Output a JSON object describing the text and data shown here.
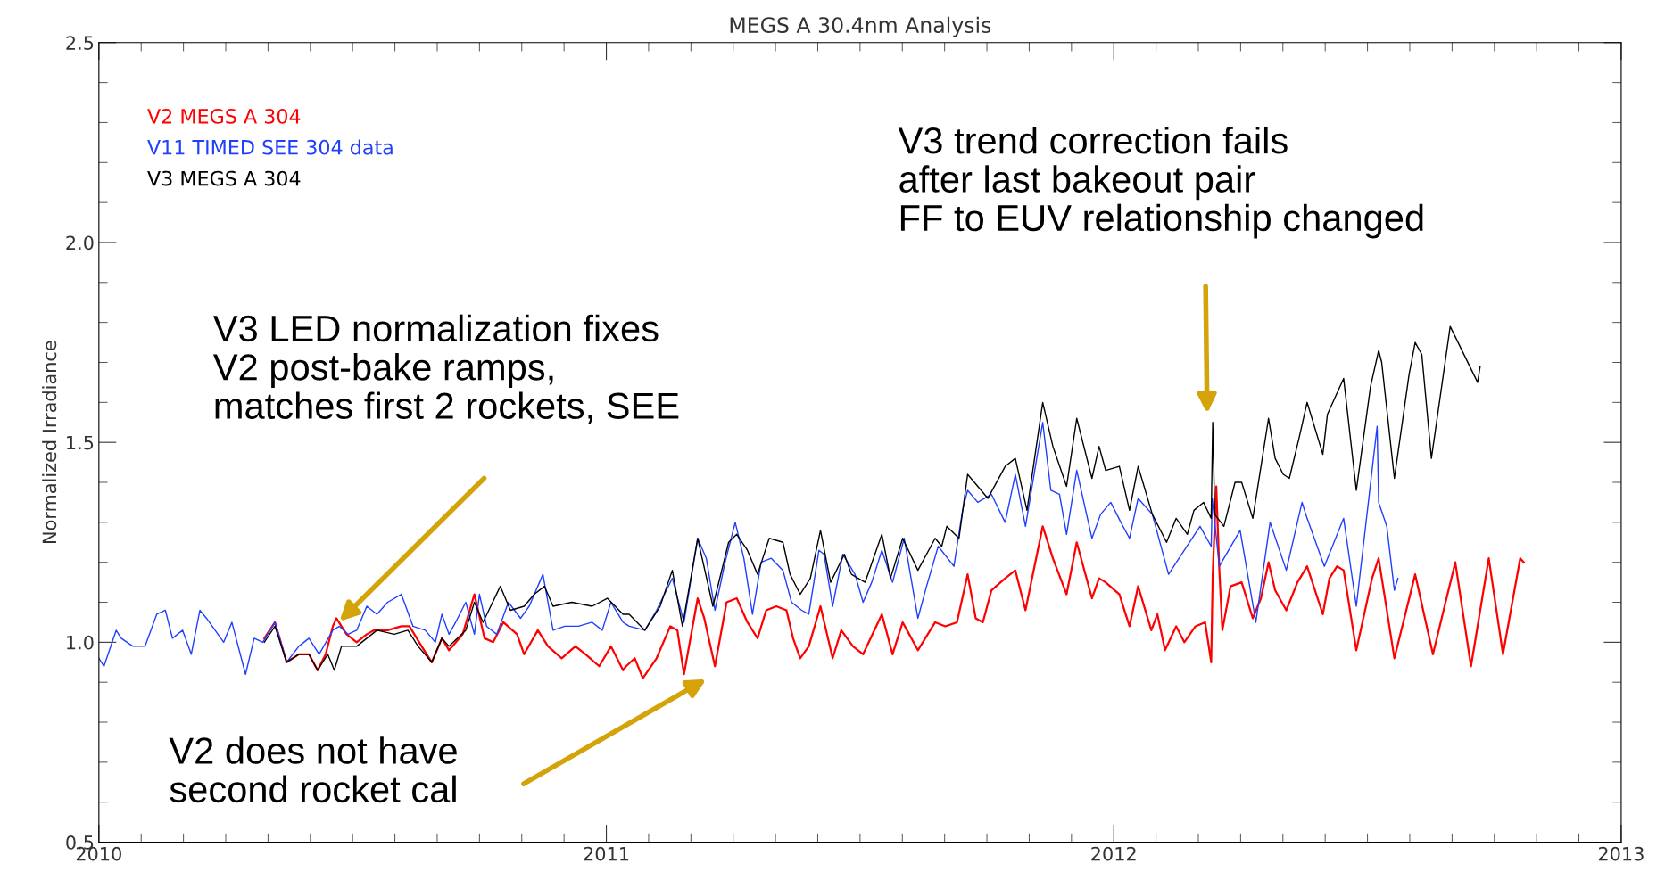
{
  "chart_data": {
    "type": "line",
    "title": "MEGS A 30.4nm Analysis",
    "ylabel": "Normalized Irradiance",
    "xlim": [
      2010,
      2013
    ],
    "xticks": [
      2010,
      2011,
      2012,
      2013
    ],
    "ylim": [
      0.5,
      2.5
    ],
    "yticks": [
      0.5,
      {
        "value": 1.0,
        "label": "1.0"
      },
      1.5,
      {
        "value": 2.0,
        "label": "2.0"
      },
      2.5
    ],
    "grid": false,
    "legend": "top left",
    "marker": "none",
    "line_style": "solid",
    "series": [
      {
        "name": "V2 MEGS A 304",
        "color": "#ff0000",
        "x": [
          2010.326,
          2010.347,
          2010.37,
          2010.394,
          2010.414,
          2010.431,
          2010.447,
          2010.461,
          2010.468,
          2010.488,
          2010.508,
          2010.528,
          2010.542,
          2010.569,
          2010.596,
          2010.612,
          2010.636,
          2010.656,
          2010.676,
          2010.69,
          2010.717,
          2010.74,
          2010.76,
          2010.777,
          2010.797,
          2010.824,
          2010.838,
          2010.865,
          2010.885,
          2010.912,
          2010.939,
          2010.959,
          2010.986,
          2011.009,
          2011.033,
          2011.039,
          2011.056,
          2011.072,
          2011.099,
          2011.126,
          2011.14,
          2011.153,
          2011.18,
          2011.193,
          2011.214,
          2011.237,
          2011.257,
          2011.278,
          2011.298,
          2011.315,
          2011.335,
          2011.355,
          2011.368,
          2011.382,
          2011.399,
          2011.422,
          2011.446,
          2011.463,
          2011.486,
          2011.506,
          2011.543,
          2011.564,
          2011.584,
          2011.614,
          2011.648,
          2011.668,
          2011.691,
          2011.712,
          2011.728,
          2011.742,
          2011.759,
          2011.786,
          2011.806,
          2011.826,
          2011.86,
          2011.88,
          2011.907,
          2011.927,
          2011.957,
          2011.971,
          2011.984,
          2012.011,
          2012.031,
          2012.048,
          2012.074,
          2012.086,
          2012.101,
          2012.123,
          2012.139,
          2012.161,
          2012.18,
          2012.192,
          2012.195,
          2012.202,
          2012.208,
          2012.214,
          2012.23,
          2012.252,
          2012.274,
          2012.29,
          2012.305,
          2012.318,
          2012.34,
          2012.362,
          2012.381,
          2012.412,
          2012.425,
          2012.44,
          2012.453,
          2012.478,
          2012.509,
          2012.522,
          2012.553,
          2012.594,
          2012.629,
          2012.673,
          2012.704,
          2012.739,
          2012.767,
          2012.801,
          2012.808
        ],
        "values": [
          1.01,
          1.05,
          0.95,
          0.97,
          0.97,
          0.93,
          0.97,
          1.04,
          1.06,
          1.02,
          1.0,
          1.02,
          1.03,
          1.03,
          1.04,
          1.04,
          0.99,
          0.95,
          1.01,
          0.98,
          1.02,
          1.12,
          1.01,
          1.0,
          1.05,
          1.02,
          0.97,
          1.03,
          0.99,
          0.96,
          0.99,
          0.97,
          0.94,
          0.99,
          0.93,
          0.94,
          0.96,
          0.91,
          0.96,
          1.04,
          1.03,
          0.92,
          1.11,
          1.06,
          0.94,
          1.1,
          1.11,
          1.05,
          1.01,
          1.08,
          1.09,
          1.08,
          1.01,
          0.96,
          0.99,
          1.09,
          0.96,
          1.03,
          0.99,
          0.97,
          1.07,
          0.97,
          1.05,
          0.98,
          1.05,
          1.04,
          1.05,
          1.17,
          1.06,
          1.05,
          1.13,
          1.16,
          1.18,
          1.08,
          1.29,
          1.21,
          1.12,
          1.25,
          1.11,
          1.16,
          1.15,
          1.12,
          1.04,
          1.14,
          1.03,
          1.07,
          0.98,
          1.04,
          1.0,
          1.04,
          1.05,
          0.95,
          1.17,
          1.39,
          1.18,
          1.03,
          1.14,
          1.15,
          1.06,
          1.11,
          1.2,
          1.13,
          1.08,
          1.15,
          1.19,
          1.07,
          1.16,
          1.19,
          1.18,
          0.98,
          1.16,
          1.21,
          0.96,
          1.17,
          0.97,
          1.2,
          0.94,
          1.21,
          0.97,
          1.21,
          1.2
        ]
      },
      {
        "name": "V11 TIMED SEE 304 data",
        "color": "#1f3fff",
        "x": [
          2010.0,
          2010.01,
          2010.034,
          2010.044,
          2010.067,
          2010.091,
          2010.114,
          2010.131,
          2010.145,
          2010.165,
          2010.182,
          2010.199,
          2010.212,
          2010.229,
          2010.246,
          2010.262,
          2010.289,
          2010.306,
          2010.323,
          2010.347,
          2010.37,
          2010.394,
          2010.414,
          2010.434,
          2010.461,
          2010.474,
          2010.491,
          2010.508,
          2010.528,
          2010.548,
          2010.569,
          2010.596,
          2010.619,
          2010.643,
          2010.663,
          2010.676,
          2010.69,
          2010.703,
          2010.723,
          2010.74,
          2010.75,
          2010.764,
          2010.784,
          2010.807,
          2010.831,
          2010.848,
          2010.875,
          2010.895,
          2010.918,
          2010.945,
          2010.972,
          2010.992,
          2011.009,
          2011.033,
          2011.045,
          2011.076,
          2011.099,
          2011.13,
          2011.153,
          2011.18,
          2011.197,
          2011.214,
          2011.234,
          2011.254,
          2011.271,
          2011.288,
          2011.305,
          2011.325,
          2011.348,
          2011.365,
          2011.385,
          2011.399,
          2011.419,
          2011.429,
          2011.446,
          2011.466,
          2011.49,
          2011.506,
          2011.523,
          2011.543,
          2011.564,
          2011.587,
          2011.614,
          2011.631,
          2011.654,
          2011.685,
          2011.702,
          2011.712,
          2011.732,
          2011.759,
          2011.786,
          2011.806,
          2011.826,
          2011.86,
          2011.876,
          2011.893,
          2011.907,
          2011.927,
          2011.957,
          2011.974,
          2011.994,
          2012.014,
          2012.031,
          2012.048,
          2012.076,
          2012.108,
          2012.139,
          2012.17,
          2012.192,
          2012.194,
          2012.208,
          2012.249,
          2012.28,
          2012.308,
          2012.34,
          2012.371,
          2012.381,
          2012.415,
          2012.453,
          2012.478,
          2012.519,
          2012.522,
          2012.538,
          2012.553,
          2012.56
        ],
        "values": [
          0.96,
          0.94,
          1.03,
          1.01,
          0.99,
          0.99,
          1.07,
          1.08,
          1.01,
          1.03,
          0.97,
          1.08,
          1.06,
          1.03,
          1.0,
          1.05,
          0.92,
          1.01,
          1.0,
          1.05,
          0.95,
          0.99,
          1.01,
          0.97,
          1.03,
          1.04,
          1.02,
          1.03,
          1.09,
          1.07,
          1.1,
          1.12,
          1.04,
          1.03,
          1.0,
          1.07,
          1.02,
          1.05,
          1.1,
          1.02,
          1.12,
          1.04,
          1.02,
          1.1,
          1.06,
          1.09,
          1.17,
          1.03,
          1.04,
          1.04,
          1.05,
          1.03,
          1.1,
          1.05,
          1.04,
          1.03,
          1.08,
          1.16,
          1.05,
          1.26,
          1.21,
          1.08,
          1.2,
          1.3,
          1.21,
          1.07,
          1.2,
          1.21,
          1.18,
          1.1,
          1.08,
          1.07,
          1.23,
          1.22,
          1.09,
          1.22,
          1.17,
          1.1,
          1.15,
          1.23,
          1.15,
          1.26,
          1.06,
          1.14,
          1.24,
          1.19,
          1.33,
          1.38,
          1.35,
          1.37,
          1.3,
          1.42,
          1.29,
          1.55,
          1.38,
          1.37,
          1.27,
          1.43,
          1.26,
          1.32,
          1.35,
          1.3,
          1.26,
          1.36,
          1.32,
          1.17,
          1.23,
          1.29,
          1.24,
          1.36,
          1.19,
          1.28,
          1.05,
          1.3,
          1.18,
          1.35,
          1.31,
          1.19,
          1.31,
          1.09,
          1.54,
          1.35,
          1.29,
          1.13,
          1.16
        ]
      },
      {
        "name": "V3 MEGS A 304",
        "color": "#000000",
        "x": [
          2010.326,
          2010.347,
          2010.37,
          2010.394,
          2010.414,
          2010.431,
          2010.451,
          2010.464,
          2010.478,
          2010.508,
          2010.528,
          2010.548,
          2010.582,
          2010.609,
          2010.629,
          2010.656,
          2010.676,
          2010.69,
          2010.723,
          2010.74,
          2010.757,
          2010.791,
          2010.811,
          2010.838,
          2010.858,
          2010.878,
          2010.895,
          2010.932,
          2010.972,
          2011.002,
          2011.033,
          2011.045,
          2011.076,
          2011.106,
          2011.13,
          2011.15,
          2011.18,
          2011.21,
          2011.241,
          2011.257,
          2011.278,
          2011.298,
          2011.321,
          2011.348,
          2011.362,
          2011.382,
          2011.402,
          2011.422,
          2011.442,
          2011.469,
          2011.483,
          2011.51,
          2011.543,
          2011.56,
          2011.584,
          2011.614,
          2011.648,
          2011.661,
          2011.671,
          2011.695,
          2011.712,
          2011.732,
          2011.752,
          2011.786,
          2011.806,
          2011.829,
          2011.86,
          2011.88,
          2011.907,
          2011.927,
          2011.957,
          2011.971,
          2011.984,
          2012.011,
          2012.031,
          2012.048,
          2012.076,
          2012.104,
          2012.123,
          2012.145,
          2012.158,
          2012.177,
          2012.192,
          2012.195,
          2012.199,
          2012.217,
          2012.239,
          2012.252,
          2012.274,
          2012.305,
          2012.318,
          2012.334,
          2012.346,
          2012.365,
          2012.381,
          2012.412,
          2012.421,
          2012.453,
          2012.478,
          2012.506,
          2012.522,
          2012.528,
          2012.553,
          2012.582,
          2012.594,
          2012.607,
          2012.626,
          2012.663,
          2012.717,
          2012.722
        ],
        "values": [
          1.0,
          1.04,
          0.95,
          0.97,
          0.97,
          0.93,
          0.97,
          0.93,
          0.99,
          0.99,
          1.01,
          1.03,
          1.02,
          1.03,
          0.99,
          0.95,
          1.01,
          0.99,
          1.03,
          1.1,
          1.05,
          1.14,
          1.08,
          1.09,
          1.12,
          1.14,
          1.09,
          1.1,
          1.09,
          1.11,
          1.07,
          1.07,
          1.03,
          1.09,
          1.18,
          1.04,
          1.26,
          1.09,
          1.25,
          1.27,
          1.23,
          1.17,
          1.26,
          1.25,
          1.17,
          1.12,
          1.16,
          1.28,
          1.15,
          1.22,
          1.17,
          1.15,
          1.27,
          1.16,
          1.26,
          1.18,
          1.26,
          1.24,
          1.29,
          1.26,
          1.42,
          1.39,
          1.36,
          1.44,
          1.46,
          1.33,
          1.6,
          1.49,
          1.39,
          1.56,
          1.41,
          1.49,
          1.43,
          1.44,
          1.33,
          1.44,
          1.32,
          1.25,
          1.31,
          1.27,
          1.33,
          1.35,
          1.31,
          1.55,
          1.32,
          1.29,
          1.4,
          1.4,
          1.31,
          1.56,
          1.46,
          1.42,
          1.41,
          1.51,
          1.6,
          1.47,
          1.57,
          1.66,
          1.38,
          1.64,
          1.73,
          1.7,
          1.41,
          1.67,
          1.75,
          1.72,
          1.46,
          1.79,
          1.65,
          1.69
        ]
      }
    ],
    "annotations": [
      "V3 LED normalization fixes\nV2 post-bake ramps,\nmatches first 2 rockets, SEE",
      "V2 does not have\nsecond rocket cal",
      "V3 trend correction fails\nafter last bakeout pair\nFF to EUV relationship changed"
    ]
  }
}
